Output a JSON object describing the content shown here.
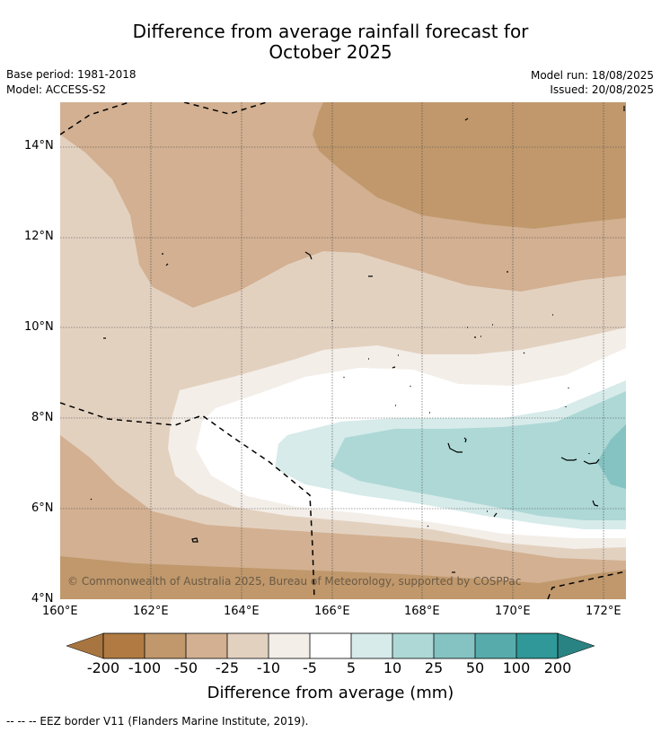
{
  "title": {
    "line1": "Difference from average rainfall forecast for",
    "line2": "October 2025"
  },
  "meta": {
    "base_period": "Base period: 1981-2018",
    "model": "Model: ACCESS-S2",
    "model_run": "Model run: 18/08/2025",
    "issued": "Issued: 20/08/2025"
  },
  "axes": {
    "x_ticks": [
      "160°E",
      "162°E",
      "164°E",
      "166°E",
      "168°E",
      "170°E",
      "172°E"
    ],
    "y_ticks": [
      "14°N",
      "12°N",
      "10°N",
      "8°N",
      "6°N",
      "4°N"
    ]
  },
  "copyright": "© Commonwealth of Australia 2025, Bureau of Meteorology, supported by COSPPac",
  "colorbar": {
    "title": "Difference from average (mm)",
    "labels": [
      "-200",
      "-100",
      "-50",
      "-25",
      "-10",
      "-5",
      "5",
      "10",
      "25",
      "50",
      "100",
      "200"
    ],
    "colors": [
      "#a87540",
      "#b07a42",
      "#c0986c",
      "#d2b091",
      "#e3d1c0",
      "#f3eee8",
      "#ffffff",
      "#d6ebea",
      "#add8d6",
      "#84c3c2",
      "#58abab",
      "#309898",
      "#2a8383"
    ]
  },
  "legend": "--  --  -- EEZ border V11 (Flanders Marine Institute, 2019)."
}
